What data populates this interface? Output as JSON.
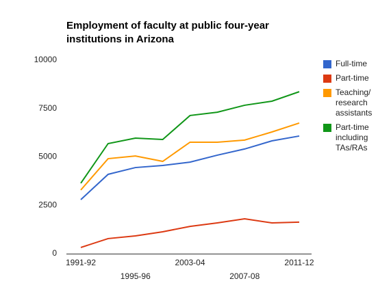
{
  "chart_data": {
    "type": "line",
    "title": "Employment of faculty at public four-year institutions in Arizona",
    "categories": [
      "1991-92",
      null,
      "1995-96",
      null,
      "2003-04",
      null,
      "2007-08",
      null,
      "2011-12"
    ],
    "series": [
      {
        "name": "Full-time",
        "color": "#3366cc",
        "values": [
          2790,
          4100,
          4450,
          4560,
          4730,
          5090,
          5410,
          5830,
          6080
        ]
      },
      {
        "name": "Part-time",
        "color": "#dc3912",
        "values": [
          320,
          780,
          920,
          1130,
          1410,
          1590,
          1800,
          1590,
          1630
        ]
      },
      {
        "name": "Teaching/ research assistants",
        "color": "#ff9900",
        "values": [
          3290,
          4910,
          5050,
          4770,
          5760,
          5760,
          5870,
          6290,
          6750
        ]
      },
      {
        "name": "Part-time including TAs/RAs",
        "color": "#109618",
        "values": [
          3640,
          5690,
          5970,
          5900,
          7140,
          7310,
          7670,
          7880,
          8370
        ]
      }
    ],
    "ylim": [
      0,
      10000
    ],
    "yticks": [
      0,
      2500,
      5000,
      7500,
      10000
    ],
    "grid": false,
    "legend": "right"
  }
}
